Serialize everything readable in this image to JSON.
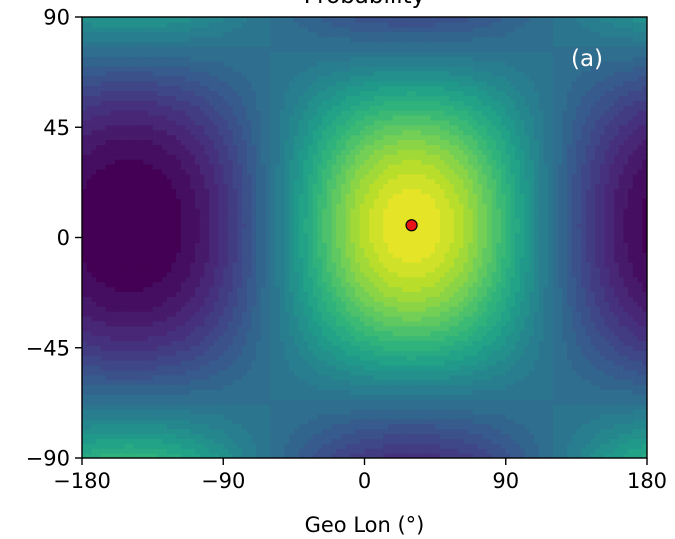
{
  "chart_data": {
    "type": "heatmap",
    "title": "Probability",
    "panel_label": "(a)",
    "xlabel": "Geo Lon (°)",
    "ylabel": "",
    "xlim": [
      -180,
      180
    ],
    "ylim": [
      -90,
      90
    ],
    "x_ticks": [
      -180,
      -90,
      0,
      90,
      180
    ],
    "x_tick_labels": [
      "−180",
      "−90",
      "0",
      "90",
      "180"
    ],
    "y_ticks": [
      -90,
      -45,
      0,
      45,
      90
    ],
    "y_tick_labels": [
      "−90",
      "−45",
      "0",
      "45",
      "90"
    ],
    "colormap": "viridis",
    "colormap_stops": [
      "#440154",
      "#482878",
      "#3e4989",
      "#31688e",
      "#26828e",
      "#1f9e89",
      "#35b779",
      "#6ece58",
      "#b5de2b",
      "#fde725"
    ],
    "peak": {
      "lon": 30,
      "lat": 5,
      "value": 1.0
    },
    "secondary_peak": {
      "lon": -150,
      "lat": 5,
      "value": 0.0
    },
    "value_range": [
      0,
      1
    ],
    "marker": {
      "lon": 30,
      "lat": 5,
      "color": "#e8141a",
      "edge_color": "#000000"
    }
  }
}
